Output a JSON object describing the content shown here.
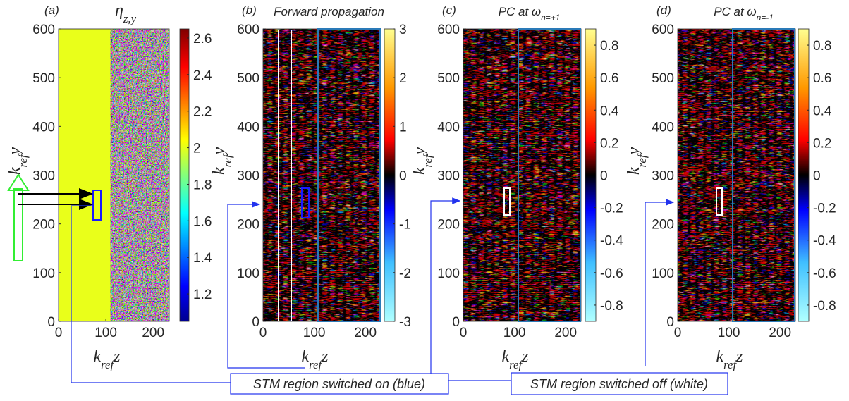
{
  "chart_data": [
    {
      "type": "heatmap",
      "panel_label": "(a)",
      "title": {
        "text": "η",
        "sub": "z,y"
      },
      "xlabel": {
        "text": "k",
        "sub": "ref",
        "after": "z"
      },
      "ylabel": {
        "text": "k",
        "sub": "ref",
        "after": "y"
      },
      "xlim": [
        0,
        234
      ],
      "ylim": [
        0,
        600
      ],
      "xticks": [
        0,
        100,
        200
      ],
      "yticks": [
        0,
        100,
        200,
        300,
        400,
        500,
        600
      ],
      "colormap": "jet",
      "clim": [
        1.05,
        2.65
      ],
      "cticks": [
        1.2,
        1.4,
        1.6,
        1.8,
        2,
        2.2,
        2.4,
        2.6
      ]
    },
    {
      "type": "heatmap",
      "panel_label": "(b)",
      "title": {
        "text": "Forward propagation"
      },
      "xlabel": {
        "text": "k",
        "sub": "ref",
        "after": "z"
      },
      "ylabel": {
        "text": "k",
        "sub": "ref",
        "after": "y"
      },
      "xlim": [
        0,
        230
      ],
      "ylim": [
        0,
        600
      ],
      "xticks": [
        0,
        100,
        200
      ],
      "yticks": [
        0,
        100,
        200,
        300,
        400,
        500,
        600
      ],
      "colormap": "diverging",
      "clim": [
        -3,
        3
      ],
      "cticks": [
        -3,
        -2,
        -1,
        0,
        1,
        2,
        3
      ]
    },
    {
      "type": "heatmap",
      "panel_label": "(c)",
      "title": {
        "text": "PC at ω",
        "sub": "n=+1"
      },
      "xlabel": {
        "text": "k",
        "sub": "ref",
        "after": "z"
      },
      "ylabel": {
        "text": "k",
        "sub": "ref",
        "after": "y"
      },
      "xlim": [
        0,
        230
      ],
      "ylim": [
        0,
        600
      ],
      "xticks": [
        0,
        100,
        200
      ],
      "yticks": [
        0,
        100,
        200,
        300,
        400,
        500,
        600
      ],
      "colormap": "diverging",
      "clim": [
        -0.9,
        0.9
      ],
      "cticks": [
        -0.8,
        -0.6,
        -0.4,
        -0.2,
        0,
        0.2,
        0.4,
        0.6,
        0.8
      ]
    },
    {
      "type": "heatmap",
      "panel_label": "(d)",
      "title": {
        "text": "PC at ω",
        "sub": "n=-1"
      },
      "xlabel": {
        "text": "k",
        "sub": "ref",
        "after": "z"
      },
      "ylabel": {
        "text": "k",
        "sub": "ref",
        "after": "y"
      },
      "xlim": [
        0,
        230
      ],
      "ylim": [
        0,
        600
      ],
      "xticks": [
        0,
        100,
        200
      ],
      "yticks": [
        0,
        100,
        200,
        300,
        400,
        500,
        600
      ],
      "colormap": "diverging",
      "clim": [
        -0.9,
        0.9
      ],
      "cticks": [
        -0.8,
        -0.6,
        -0.4,
        -0.2,
        0,
        0.2,
        0.4,
        0.6,
        0.8
      ]
    }
  ],
  "annotations": [
    "STM region switched on (blue)",
    "STM region switched off (white)"
  ]
}
